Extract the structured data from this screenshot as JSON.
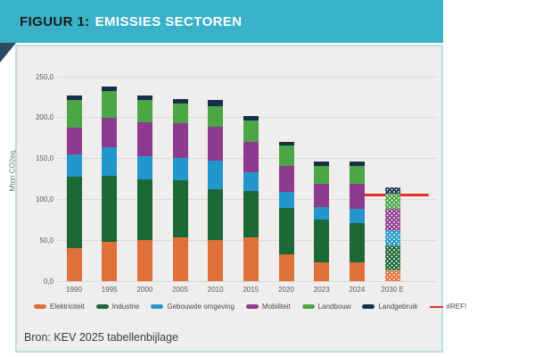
{
  "header": {
    "prefix": "FIGUUR 1:",
    "title": "EMISSIES SECTOREN"
  },
  "source_text": "Bron: KEV 2025 tabellenbijlage",
  "colors": {
    "header_bg": "#39b1c8",
    "header_prefix_text": "#1c1c1a",
    "header_title_text": "#ffffff",
    "corner_fold": "#2e4a60",
    "card_bg": "#efeeec",
    "card_border": "#b9dde9",
    "gridline": "#dad9d6",
    "axis_text": "#58595b",
    "ref_line": "#e23227"
  },
  "chart_data": {
    "type": "bar",
    "stacked": true,
    "title": "EMISSIES SECTOREN",
    "ylabel": "Mton CO2eq.",
    "ylim": [
      0,
      250
    ],
    "ytick_step": 50,
    "ytick_labels": [
      "0,0",
      "50,0",
      "100,0",
      "150,0",
      "200,0",
      "250,0"
    ],
    "grid": true,
    "legend_position": "bottom",
    "categories": [
      "1990",
      "1995",
      "2000",
      "2005",
      "2010",
      "2015",
      "2020",
      "2023",
      "2024",
      "2030 E"
    ],
    "estimated_category": "2030 E",
    "series": [
      {
        "name": "Elektriciteit",
        "color": "#e0703a",
        "values": [
          40,
          48,
          50,
          53,
          50,
          53,
          33,
          23,
          23,
          13
        ]
      },
      {
        "name": "Industrie",
        "color": "#1d6837",
        "values": [
          87,
          81,
          74,
          70,
          62,
          57,
          56,
          52,
          48,
          31
        ]
      },
      {
        "name": "Gebouwde omgeving",
        "color": "#2397cb",
        "values": [
          28,
          34,
          29,
          27,
          35,
          23,
          20,
          15,
          17,
          18
        ]
      },
      {
        "name": "Mobiliteit",
        "color": "#8e3a8e",
        "values": [
          32,
          36,
          41,
          43,
          41,
          37,
          31,
          29,
          31,
          26
        ]
      },
      {
        "name": "Landbouw",
        "color": "#4ba646",
        "values": [
          34,
          33,
          27,
          24,
          26,
          26,
          26,
          22,
          22,
          19
        ]
      },
      {
        "name": "Landgebruik",
        "color": "#17304a",
        "values": [
          6,
          5,
          6,
          5.5,
          7,
          6,
          4,
          5,
          4.5,
          7
        ]
      }
    ],
    "totals": [
      227,
      237,
      227,
      222.5,
      221,
      202,
      170,
      146,
      145.5,
      114
    ],
    "ref_line": {
      "label": "#REF!",
      "value": 105,
      "color": "#e23227",
      "x_span_categories": [
        "2024",
        "2030 E"
      ]
    }
  }
}
